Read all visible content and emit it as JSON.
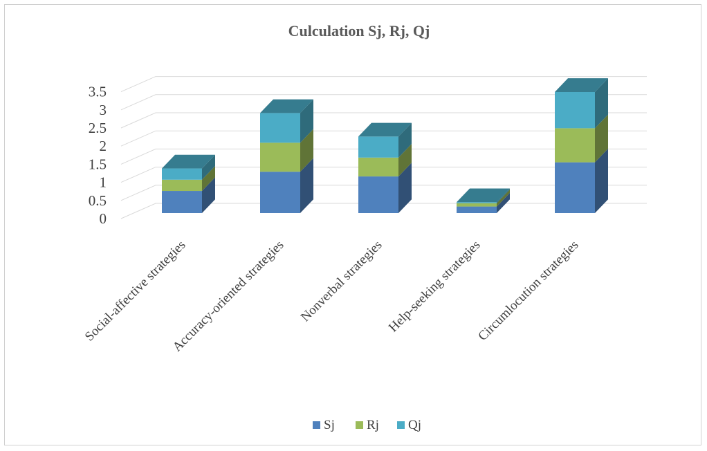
{
  "chart_data": {
    "type": "bar",
    "stacked": true,
    "three_d": true,
    "title": "Culculation Sj, Rj, Qj",
    "xlabel": "",
    "ylabel": "",
    "ylim": [
      0,
      3.5
    ],
    "yticks": [
      "0",
      "0.5",
      "1",
      "1.5",
      "2",
      "2.5",
      "3",
      "3.5"
    ],
    "grid": true,
    "legend_position": "bottom",
    "categories": [
      "Social-affective strategies",
      "Accuracy-oriented strategies",
      "Nonverbal strategies",
      "Help-seeking strategies",
      "Circumlocution strategies"
    ],
    "series": [
      {
        "name": "Sj",
        "color": "#4f81bd",
        "values": [
          0.61,
          1.14,
          1.01,
          0.18,
          1.4
        ]
      },
      {
        "name": "Rj",
        "color": "#9bbb59",
        "values": [
          0.31,
          0.8,
          0.52,
          0.09,
          0.94
        ]
      },
      {
        "name": "Qj",
        "color": "#4bacc6",
        "values": [
          0.31,
          0.82,
          0.58,
          0.03,
          1.0
        ]
      }
    ]
  }
}
